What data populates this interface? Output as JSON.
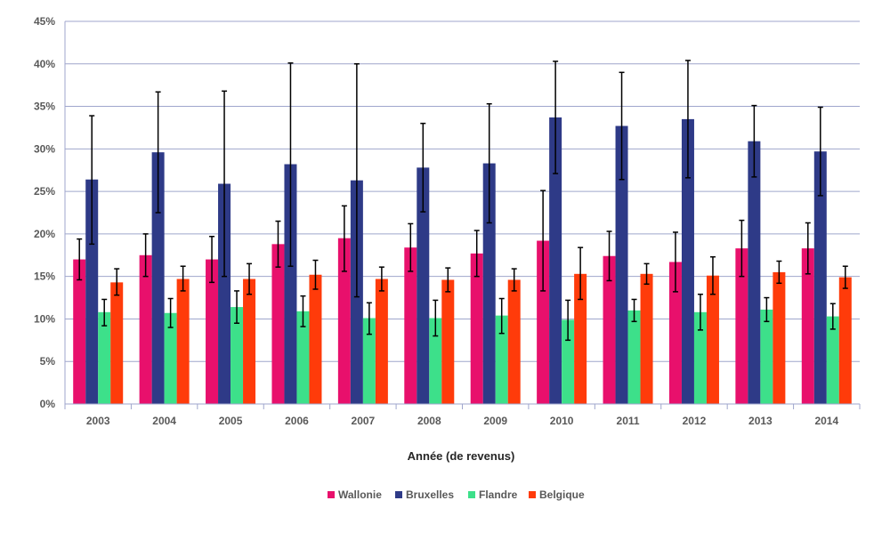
{
  "chart_data": {
    "type": "bar",
    "title": "",
    "xlabel": "Année (de revenus)",
    "ylabel": "",
    "ylim": [
      0,
      45
    ],
    "y_ticks": [
      "0%",
      "5%",
      "10%",
      "15%",
      "20%",
      "25%",
      "30%",
      "35%",
      "40%",
      "45%"
    ],
    "grid": true,
    "legend_position": "bottom",
    "categories": [
      "2003",
      "2004",
      "2005",
      "2006",
      "2007",
      "2008",
      "2009",
      "2010",
      "2011",
      "2012",
      "2013",
      "2014"
    ],
    "series": [
      {
        "name": "Wallonie",
        "color": "#E8106C",
        "values": [
          17.0,
          17.5,
          17.0,
          18.8,
          19.5,
          18.4,
          17.7,
          19.2,
          17.4,
          16.7,
          18.3,
          18.3
        ],
        "error_low": [
          14.6,
          15.0,
          14.3,
          16.1,
          15.6,
          15.6,
          15.0,
          13.3,
          14.5,
          13.2,
          15.0,
          15.3
        ],
        "error_high": [
          19.4,
          20.0,
          19.7,
          21.5,
          23.3,
          21.2,
          20.4,
          25.1,
          20.3,
          20.2,
          21.6,
          21.3
        ]
      },
      {
        "name": "Bruxelles",
        "color": "#2E3A87",
        "values": [
          26.4,
          29.6,
          25.9,
          28.2,
          26.3,
          27.8,
          28.3,
          33.7,
          32.7,
          33.5,
          30.9,
          29.7
        ],
        "error_low": [
          18.8,
          22.5,
          15.0,
          16.2,
          12.6,
          22.6,
          21.3,
          27.1,
          26.4,
          26.6,
          26.7,
          24.5
        ],
        "error_high": [
          33.9,
          36.7,
          36.8,
          40.1,
          40.0,
          33.0,
          35.3,
          40.3,
          39.0,
          40.4,
          35.1,
          34.9
        ]
      },
      {
        "name": "Flandre",
        "color": "#3DE08A",
        "values": [
          10.8,
          10.7,
          11.4,
          10.9,
          10.1,
          10.1,
          10.4,
          9.9,
          11.0,
          10.8,
          11.1,
          10.3
        ],
        "error_low": [
          9.2,
          9.0,
          9.5,
          9.1,
          8.2,
          8.0,
          8.3,
          7.5,
          9.7,
          8.7,
          9.7,
          8.8
        ],
        "error_high": [
          12.3,
          12.4,
          13.3,
          12.7,
          11.9,
          12.2,
          12.4,
          12.2,
          12.3,
          12.9,
          12.5,
          11.8
        ]
      },
      {
        "name": "Belgique",
        "color": "#FF3B0A",
        "values": [
          14.3,
          14.7,
          14.7,
          15.2,
          14.7,
          14.6,
          14.6,
          15.3,
          15.3,
          15.1,
          15.5,
          14.9
        ],
        "error_low": [
          12.8,
          13.3,
          12.9,
          13.5,
          13.3,
          13.2,
          13.3,
          12.3,
          14.1,
          12.9,
          14.2,
          13.6
        ],
        "error_high": [
          15.9,
          16.2,
          16.5,
          16.9,
          16.1,
          16.0,
          15.9,
          18.4,
          16.5,
          17.3,
          16.8,
          16.2
        ]
      }
    ]
  }
}
